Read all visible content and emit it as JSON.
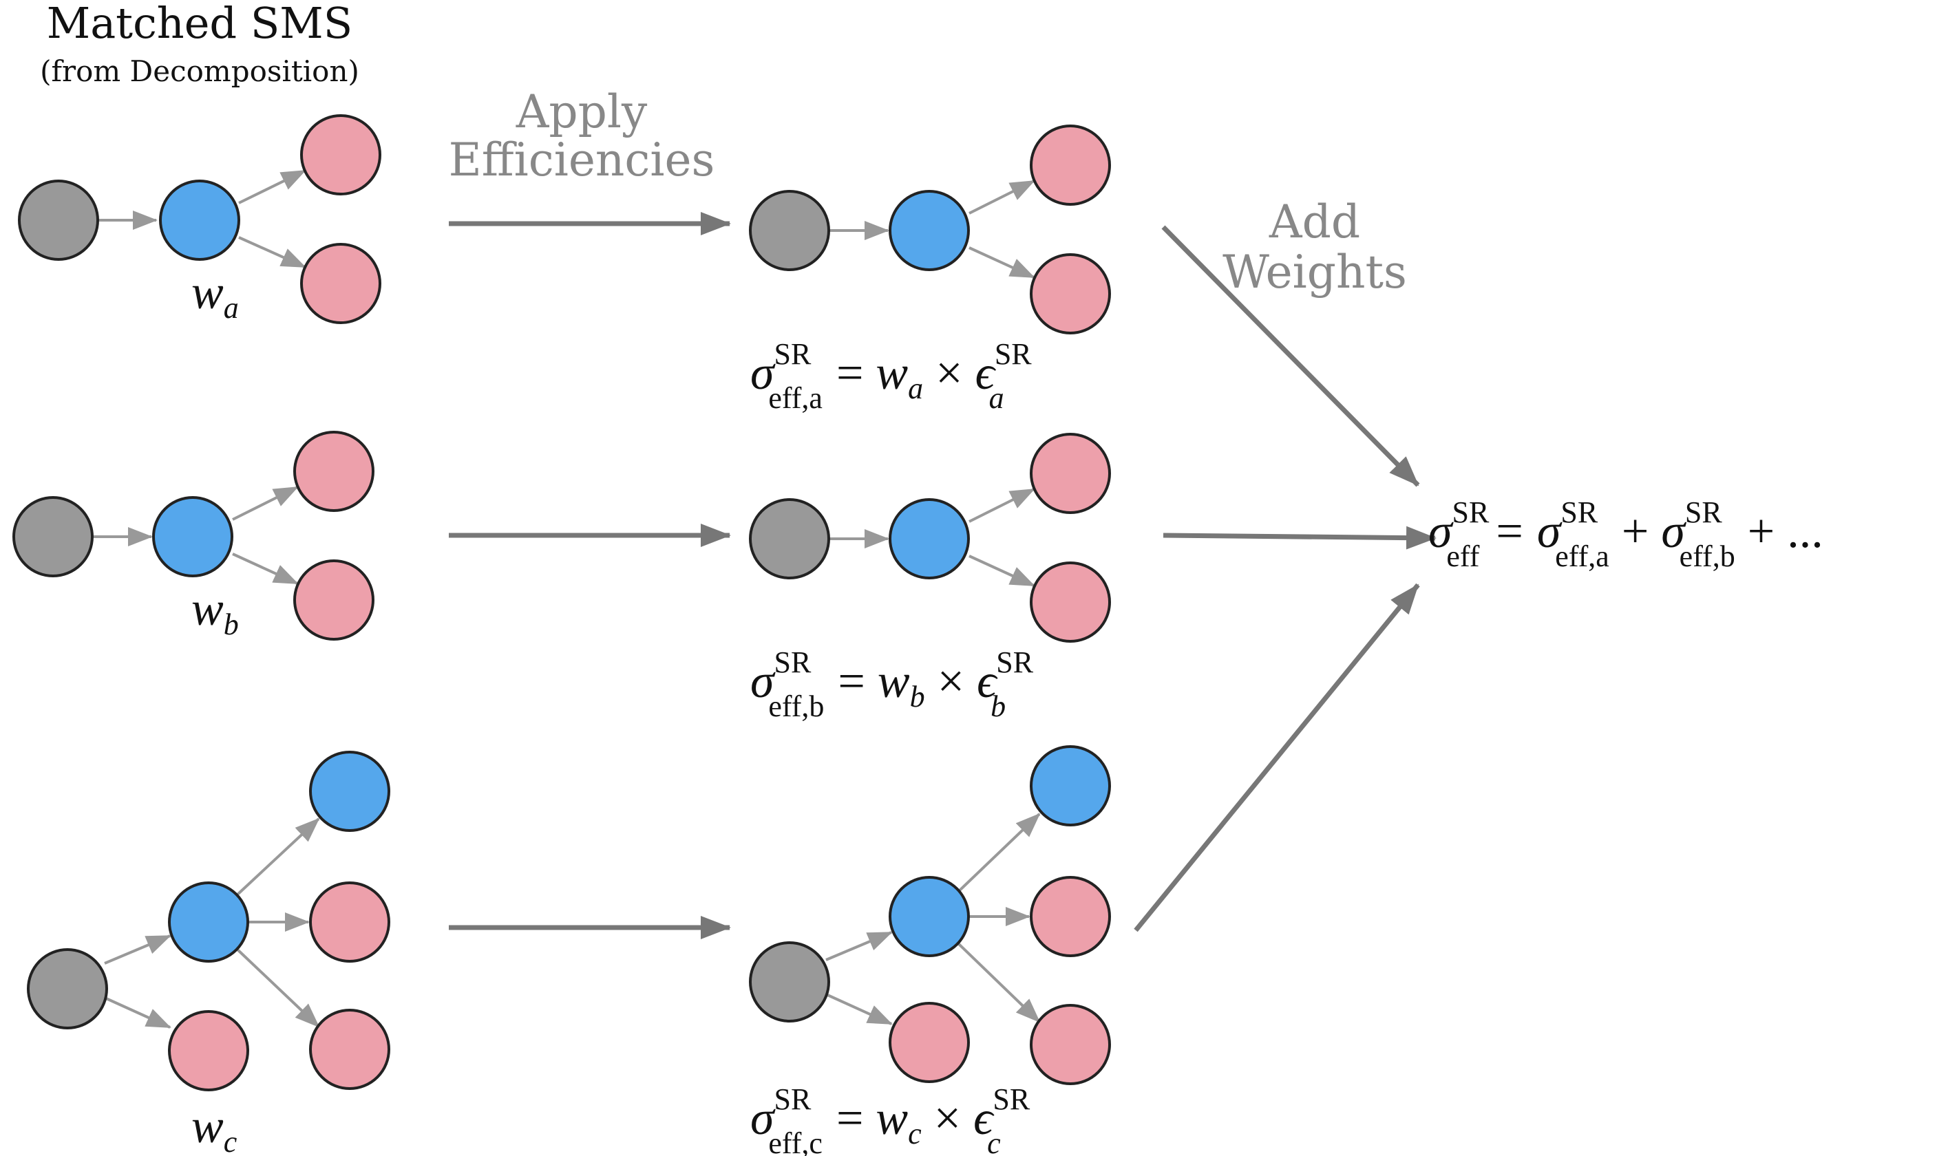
{
  "header": {
    "title": "Matched SMS",
    "subtitle": "(from Decomposition)"
  },
  "steps": {
    "apply": [
      "Apply",
      "Efficiencies"
    ],
    "add": [
      "Add",
      "Weights"
    ]
  },
  "weights": {
    "a": "w",
    "a_sub": "a",
    "b": "w",
    "b_sub": "b",
    "c": "w",
    "c_sub": "c"
  },
  "equations": {
    "a": {
      "sigma": "σ",
      "sup": "SR",
      "sub": "eff,a",
      "eq": "=",
      "w": "w",
      "w_sub": "a",
      "times": "×",
      "eps": "ϵ",
      "eps_sup": "SR",
      "eps_sub": "a"
    },
    "b": {
      "sigma": "σ",
      "sup": "SR",
      "sub": "eff,b",
      "eq": "=",
      "w": "w",
      "w_sub": "b",
      "times": "×",
      "eps": "ϵ",
      "eps_sup": "SR",
      "eps_sub": "b"
    },
    "c": {
      "sigma": "σ",
      "sup": "SR",
      "sub": "eff,c",
      "eq": "=",
      "w": "w",
      "w_sub": "c",
      "times": "×",
      "eps": "ϵ",
      "eps_sup": "SR",
      "eps_sub": "c"
    }
  },
  "total": {
    "sigma": "σ",
    "sup": "SR",
    "sub": "eff",
    "eq": "=",
    "t1_sigma": "σ",
    "t1_sup": "SR",
    "t1_sub": "eff,a",
    "plus1": "+",
    "t2_sigma": "σ",
    "t2_sup": "SR",
    "t2_sub": "eff,b",
    "plus2": "+",
    "ellipsis": "..."
  },
  "colors": {
    "gray": "#999999",
    "blue": "#55a7ec",
    "pink": "#eda0ab",
    "outline": "#222222",
    "arrow": "#777777"
  }
}
